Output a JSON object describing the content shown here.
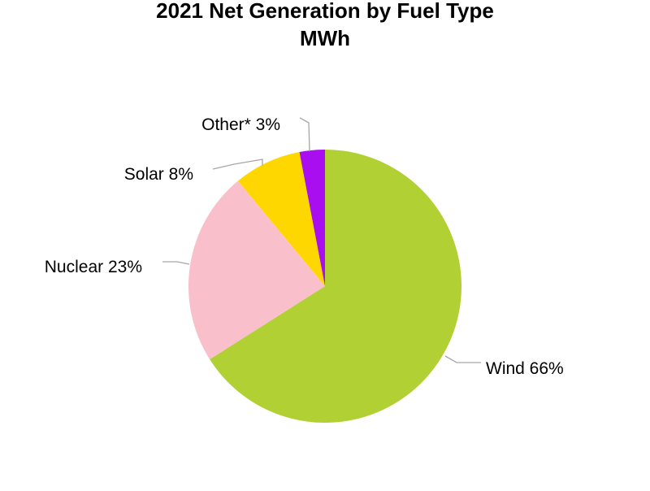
{
  "chart_data": {
    "type": "pie",
    "title": "2021 Net Generation by Fuel Type",
    "subtitle": "MWh",
    "slices": [
      {
        "label": "Wind",
        "value": 66,
        "display": "Wind 66%",
        "color": "#b0d033"
      },
      {
        "label": "Nuclear",
        "value": 23,
        "display": "Nuclear 23%",
        "color": "#f9bfcb"
      },
      {
        "label": "Solar",
        "value": 8,
        "display": "Solar 8%",
        "color": "#ffd700"
      },
      {
        "label": "Other*",
        "value": 3,
        "display": "Other* 3%",
        "color": "#a90ef0"
      }
    ],
    "start_angle": "12 o'clock",
    "direction": "clockwise",
    "legend": "none",
    "data_labels": "outside with leader lines"
  }
}
